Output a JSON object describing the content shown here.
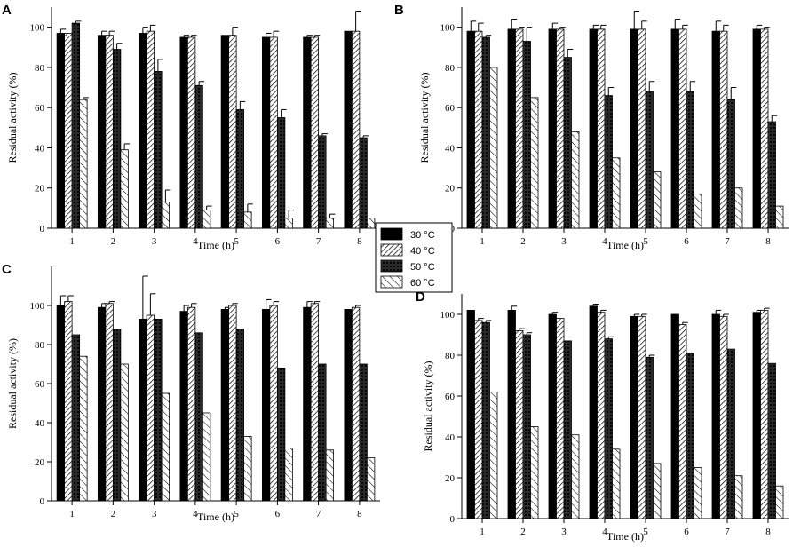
{
  "legend": {
    "series": [
      {
        "name": "30 °C",
        "pattern": "solid"
      },
      {
        "name": "40 °C",
        "pattern": "diag-light"
      },
      {
        "name": "50 °C",
        "pattern": "crosshatch"
      },
      {
        "name": "60 °C",
        "pattern": "diag-sparse"
      }
    ]
  },
  "chart_data": [
    {
      "panel": "A",
      "type": "bar",
      "xlabel": "Time (h)",
      "ylabel": "Residual activity (%)",
      "ylim": [
        0,
        110
      ],
      "yticks": [
        0,
        20,
        40,
        60,
        80,
        100
      ],
      "categories": [
        "1",
        "2",
        "3",
        "4",
        "5",
        "6",
        "7",
        "8"
      ],
      "series": [
        {
          "name": "30 °C",
          "values": [
            97,
            96,
            97,
            95,
            96,
            95,
            95,
            98
          ],
          "errors": [
            2,
            2,
            3,
            1,
            0,
            2,
            1,
            0
          ]
        },
        {
          "name": "40 °C",
          "values": [
            97,
            96,
            98,
            95,
            96,
            95,
            95,
            98
          ],
          "errors": [
            0,
            2,
            3,
            1,
            4,
            3,
            1,
            10
          ]
        },
        {
          "name": "50 °C",
          "values": [
            102,
            89,
            78,
            71,
            59,
            55,
            46,
            45
          ],
          "errors": [
            1,
            3,
            6,
            2,
            4,
            4,
            1,
            1
          ]
        },
        {
          "name": "60 °C",
          "values": [
            64,
            39,
            13,
            9,
            8,
            5,
            5,
            5
          ],
          "errors": [
            1,
            3,
            6,
            2,
            4,
            4,
            2,
            0
          ]
        }
      ]
    },
    {
      "panel": "B",
      "type": "bar",
      "xlabel": "Time (h)",
      "ylabel": "Residual activity (%)",
      "ylim": [
        0,
        110
      ],
      "yticks": [
        0,
        20,
        40,
        60,
        80,
        100
      ],
      "categories": [
        "1",
        "2",
        "3",
        "4",
        "5",
        "6",
        "7",
        "8"
      ],
      "series": [
        {
          "name": "30 °C",
          "values": [
            98,
            99,
            99,
            99,
            99,
            99,
            98,
            99
          ],
          "errors": [
            5,
            5,
            3,
            2,
            9,
            5,
            5,
            2
          ]
        },
        {
          "name": "40 °C",
          "values": [
            98,
            99,
            99,
            99,
            99,
            99,
            98,
            99
          ],
          "errors": [
            4,
            1,
            1,
            2,
            4,
            2,
            3,
            1
          ]
        },
        {
          "name": "50 °C",
          "values": [
            95,
            93,
            85,
            66,
            68,
            68,
            64,
            53
          ],
          "errors": [
            1,
            7,
            4,
            4,
            5,
            5,
            6,
            3
          ]
        },
        {
          "name": "60 °C",
          "values": [
            80,
            65,
            48,
            35,
            28,
            17,
            20,
            11
          ],
          "errors": [
            0,
            0,
            0,
            0,
            0,
            0,
            0,
            0
          ]
        }
      ]
    },
    {
      "panel": "C",
      "type": "bar",
      "xlabel": "Time (h)",
      "ylabel": "Residual activity (%)",
      "ylim": [
        0,
        120
      ],
      "yticks": [
        0,
        20,
        40,
        60,
        80,
        100
      ],
      "categories": [
        "1",
        "2",
        "3",
        "4",
        "5",
        "6",
        "7",
        "8"
      ],
      "series": [
        {
          "name": "30 °C",
          "values": [
            100,
            99,
            93,
            97,
            98,
            98,
            99,
            98
          ],
          "errors": [
            5,
            2,
            22,
            3,
            1,
            5,
            3,
            0
          ]
        },
        {
          "name": "40 °C",
          "values": [
            102,
            101,
            95,
            99,
            100,
            100,
            101,
            99
          ],
          "errors": [
            3,
            1,
            11,
            2,
            1,
            2,
            1,
            1
          ]
        },
        {
          "name": "50 °C",
          "values": [
            85,
            88,
            93,
            86,
            88,
            68,
            70,
            70
          ],
          "errors": [
            0,
            0,
            0,
            0,
            0,
            0,
            0,
            0
          ]
        },
        {
          "name": "60 °C",
          "values": [
            74,
            70,
            55,
            45,
            33,
            27,
            26,
            22
          ],
          "errors": [
            0,
            0,
            0,
            0,
            0,
            0,
            0,
            0
          ]
        }
      ]
    },
    {
      "panel": "D",
      "type": "bar",
      "xlabel": "Time (h)",
      "ylabel": "Residual activity (%)",
      "ylim": [
        0,
        110
      ],
      "yticks": [
        0,
        20,
        40,
        60,
        80,
        100
      ],
      "categories": [
        "1",
        "2",
        "3",
        "4",
        "5",
        "6",
        "7",
        "8"
      ],
      "series": [
        {
          "name": "30 °C",
          "values": [
            102,
            102,
            100,
            104,
            99,
            100,
            100,
            101
          ],
          "errors": [
            0,
            2,
            1,
            1,
            1,
            0,
            2,
            1
          ]
        },
        {
          "name": "40 °C",
          "values": [
            97,
            92,
            98,
            101,
            99,
            95,
            99,
            102
          ],
          "errors": [
            1,
            1,
            0,
            1,
            1,
            1,
            1,
            1
          ]
        },
        {
          "name": "50 °C",
          "values": [
            96,
            90,
            87,
            88,
            79,
            81,
            83,
            76
          ],
          "errors": [
            1,
            1,
            0,
            1,
            1,
            0,
            0,
            0
          ]
        },
        {
          "name": "60 °C",
          "values": [
            62,
            45,
            41,
            34,
            27,
            25,
            21,
            16
          ],
          "errors": [
            0,
            0,
            0,
            0,
            0,
            0,
            0,
            0
          ]
        }
      ]
    }
  ]
}
